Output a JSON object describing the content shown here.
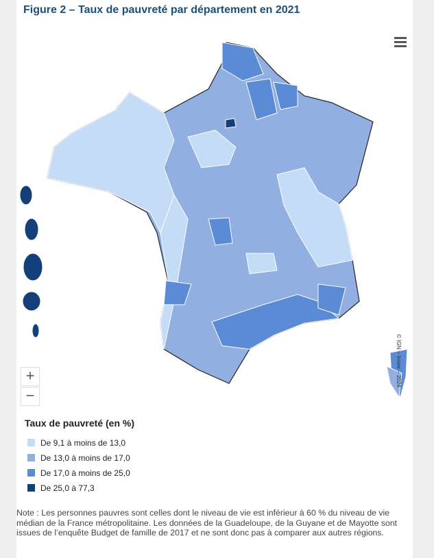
{
  "header": {
    "title": "Figure 2 – Taux de pauvreté par département en 2021"
  },
  "legend": {
    "title": "Taux de pauvreté (en %)",
    "items": [
      {
        "label": "De 9,1 à moins de 13,0",
        "color": "#c5dcf6"
      },
      {
        "label": "De 13,0 à moins de 17,0",
        "color": "#91afe0"
      },
      {
        "label": "De 17,0 à moins de 25,0",
        "color": "#5c8bd6"
      },
      {
        "label": "De 25,0 à 77,3",
        "color": "#143f78"
      }
    ]
  },
  "controls": {
    "zoom_in": "+",
    "zoom_out": "−"
  },
  "copyright": "© IGN – Insee – 2024",
  "note": "Note : Les personnes pauvres sont celles dont le niveau de vie est inférieur à 60 % du niveau de vie médian de la France métropolitaine. Les données de la Guadeloupe, de la Guyane et de Mayotte sont issues de l’enquête Budget de famille de 2017 et ne sont donc pas à comparer aux autres régions."
}
